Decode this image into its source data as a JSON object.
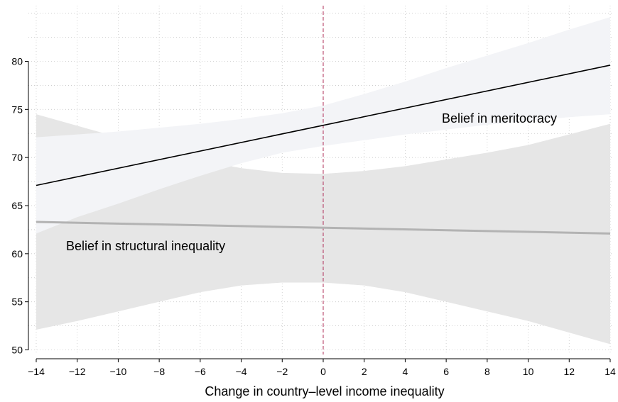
{
  "chart_data": {
    "type": "line",
    "title": "",
    "xlabel": "Change in country–level income inequality",
    "ylabel": "",
    "xlim": [
      -14,
      14
    ],
    "ylim": [
      49.5,
      85.5
    ],
    "xticks": [
      -14,
      -12,
      -10,
      -8,
      -6,
      -4,
      -2,
      0,
      2,
      4,
      6,
      8,
      10,
      12,
      14
    ],
    "xtick_labels": [
      "−14",
      "−12",
      "−10",
      "−8",
      "−6",
      "−4",
      "−2",
      "0",
      "2",
      "4",
      "6",
      "8",
      "10",
      "12",
      "14"
    ],
    "yticks": [
      50,
      55,
      60,
      65,
      70,
      75,
      80
    ],
    "ytick_labels": [
      "50",
      "55",
      "60",
      "65",
      "70",
      "75",
      "80"
    ],
    "grid": true,
    "reference_line": {
      "x": 0,
      "color": "#b0305a",
      "style": "dashed"
    },
    "series": [
      {
        "name": "Belief in meritocracy",
        "color": "#000000",
        "band_color": "#f3f4f7",
        "x": [
          -14,
          14
        ],
        "y": [
          67.1,
          79.6
        ],
        "ci_x": [
          -14,
          -12,
          -10,
          -8,
          -6,
          -4,
          -2,
          0,
          2,
          4,
          6,
          8,
          10,
          12,
          14
        ],
        "ci_lower": [
          62.1,
          63.8,
          65.2,
          66.7,
          68.1,
          69.4,
          70.5,
          71.2,
          71.8,
          72.4,
          72.9,
          73.4,
          73.8,
          74.2,
          74.5
        ],
        "ci_upper": [
          72.1,
          72.4,
          72.7,
          73.1,
          73.5,
          74.0,
          74.6,
          75.4,
          76.6,
          77.9,
          79.3,
          80.6,
          81.9,
          83.3,
          84.6
        ]
      },
      {
        "name": "Belief in structural inequality",
        "color": "#b3b3b3",
        "band_color": "#e6e6e6",
        "x": [
          -14,
          14
        ],
        "y": [
          63.3,
          62.1
        ],
        "ci_x": [
          -14,
          -12,
          -10,
          -8,
          -6,
          -4,
          -2,
          0,
          2,
          4,
          6,
          8,
          10,
          12,
          14
        ],
        "ci_lower": [
          52.1,
          53.0,
          54.0,
          55.0,
          56.0,
          56.7,
          57.0,
          57.0,
          56.7,
          56.0,
          55.0,
          54.0,
          53.0,
          51.8,
          50.6
        ],
        "ci_upper": [
          74.5,
          73.3,
          72.1,
          70.9,
          69.7,
          68.9,
          68.4,
          68.3,
          68.6,
          69.1,
          69.8,
          70.5,
          71.3,
          72.4,
          73.5
        ]
      }
    ]
  }
}
